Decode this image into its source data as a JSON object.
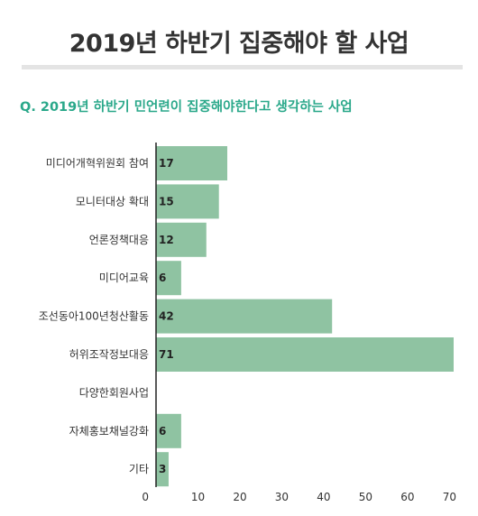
{
  "page": {
    "title": "2019년 하반기 집중해야 할 사업",
    "question": "Q. 2019년 하반기 민언련이 집중해야한다고 생각하는 사업"
  },
  "colors": {
    "bar": "#8fc3a2",
    "question": "#2aa88a",
    "axis": "#222222",
    "rule": "#e4e4e4"
  },
  "chart_data": {
    "type": "bar",
    "orientation": "horizontal",
    "categories": [
      "미디어개혁위원회 참여",
      "모니터대상 확대",
      "언론정책대응",
      "미디어교육",
      "조선동아100년청산활동",
      "허위조작정보대응",
      "다양한회원사업",
      "자체홍보채널강화",
      "기타"
    ],
    "values": [
      17,
      15,
      12,
      6,
      42,
      71,
      null,
      6,
      3
    ],
    "value_labels": [
      "17",
      "15",
      "12",
      "6",
      "42",
      "71",
      "",
      "6",
      "3"
    ],
    "x_ticks": [
      0,
      10,
      20,
      30,
      40,
      50,
      60,
      70
    ],
    "xlim": [
      0,
      71
    ],
    "grid": false,
    "title": "",
    "xlabel": "",
    "ylabel": ""
  }
}
